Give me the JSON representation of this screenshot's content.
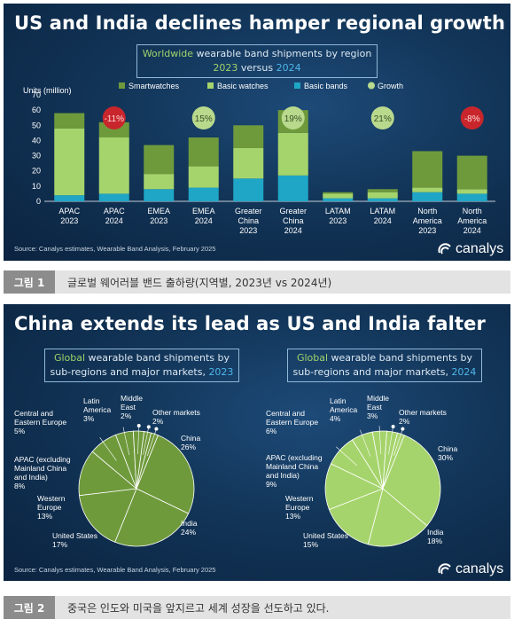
{
  "figure1": {
    "title": "US and India declines hamper regional growth",
    "subtitle_accent": "Worldwide",
    "subtitle_rest": " wearable band shipments by region",
    "subtitle_year_a": "2023",
    "subtitle_mid": " versus ",
    "subtitle_year_b": "2024",
    "source": "Source: Canalys estimates, Wearable Band Analysis, February 2025",
    "logo": "canalys",
    "caption_label": "그림 1",
    "caption_text": "글로벌 웨어러블 밴드 출하량(지역별, 2023년 vs 2024년)"
  },
  "figure2": {
    "title": "China extends its lead as US and India falter",
    "source": "Source: Canalys estimates, Wearable Band Analysis, February 2025",
    "logo": "canalys",
    "caption_label": "그림 2",
    "caption_text": "중국은 인도와 미국을 앞지르고 세계 성장을 선도하고 있다."
  },
  "colors": {
    "smartwatches": "#6f9a3c",
    "basic_watches": "#a6d46c",
    "basic_bands": "#1fa6c6",
    "growth_positive": "#b9d98d",
    "growth_negative": "#c8262c",
    "pie_2023": "#6f9a3c",
    "pie_2024": "#a6d46c"
  },
  "chart_data": [
    {
      "type": "bar",
      "stacked": true,
      "ylabel": "Units (million)",
      "ylim": [
        0,
        70
      ],
      "yticks": [
        0,
        10,
        20,
        30,
        40,
        50,
        60,
        70
      ],
      "grid": false,
      "legend_position": "top",
      "categories": [
        [
          "APAC",
          "2023"
        ],
        [
          "APAC",
          "2024"
        ],
        [
          "EMEA",
          "2023"
        ],
        [
          "EMEA",
          "2024"
        ],
        [
          "Greater",
          "China",
          "2023"
        ],
        [
          "Greater",
          "China",
          "2024"
        ],
        [
          "LATAM",
          "2023"
        ],
        [
          "LATAM",
          "2024"
        ],
        [
          "North",
          "America",
          "2023"
        ],
        [
          "North",
          "America",
          "2024"
        ]
      ],
      "series": [
        {
          "name": "Basic bands",
          "values": [
            4,
            5,
            8,
            9,
            15,
            17,
            2,
            2,
            6,
            5
          ]
        },
        {
          "name": "Basic watches",
          "values": [
            44,
            37,
            10,
            14,
            20,
            28,
            3,
            4,
            3,
            3
          ]
        },
        {
          "name": "Smartwatches",
          "values": [
            10,
            10,
            19,
            19,
            15,
            15,
            1,
            2,
            24,
            22
          ]
        }
      ],
      "growth": {
        "name": "Growth",
        "labels": [
          "-11%",
          "15%",
          "19%",
          "21%",
          "-8%"
        ],
        "category_index": [
          1,
          3,
          5,
          7,
          9
        ],
        "negative": [
          true,
          false,
          false,
          false,
          true
        ]
      }
    },
    {
      "type": "pie",
      "title_accent": "Global",
      "title_rest": " wearable band shipments by",
      "title_line2": "sub-regions and major markets, ",
      "title_year": "2023",
      "slices": [
        {
          "label": [
            "China",
            "26%"
          ],
          "value": 26
        },
        {
          "label": [
            "India",
            "24%"
          ],
          "value": 24
        },
        {
          "label": [
            "United States",
            "17%"
          ],
          "value": 17
        },
        {
          "label": [
            "Western",
            "Europe",
            "13%"
          ],
          "value": 13
        },
        {
          "label": [
            "APAC (excluding",
            "Mainland China",
            "and India)",
            "8%"
          ],
          "value": 8
        },
        {
          "label": [
            "Central and",
            "Eastern Europe",
            "5%"
          ],
          "value": 5
        },
        {
          "label": [
            "Latin",
            "America",
            "3%"
          ],
          "value": 3
        },
        {
          "label": [
            "Middle",
            "East",
            "2%"
          ],
          "value": 2
        },
        {
          "label": [
            "Other markets",
            "2%"
          ],
          "value": 2
        }
      ]
    },
    {
      "type": "pie",
      "title_accent": "Global",
      "title_rest": " wearable band shipments by",
      "title_line2": "sub-regions and major markets, ",
      "title_year": "2024",
      "slices": [
        {
          "label": [
            "China",
            "30%"
          ],
          "value": 30
        },
        {
          "label": [
            "India",
            "18%"
          ],
          "value": 18
        },
        {
          "label": [
            "United States",
            "15%"
          ],
          "value": 15
        },
        {
          "label": [
            "Western",
            "Europe",
            "13%"
          ],
          "value": 13
        },
        {
          "label": [
            "APAC (excluding",
            "Mainland China",
            "and India)",
            "9%"
          ],
          "value": 9
        },
        {
          "label": [
            "Central and",
            "Eastern Europe",
            "6%"
          ],
          "value": 6
        },
        {
          "label": [
            "Latin",
            "America",
            "4%"
          ],
          "value": 4
        },
        {
          "label": [
            "Middle",
            "East",
            "3%"
          ],
          "value": 3
        },
        {
          "label": [
            "Other markets",
            "2%"
          ],
          "value": 2
        }
      ]
    }
  ]
}
